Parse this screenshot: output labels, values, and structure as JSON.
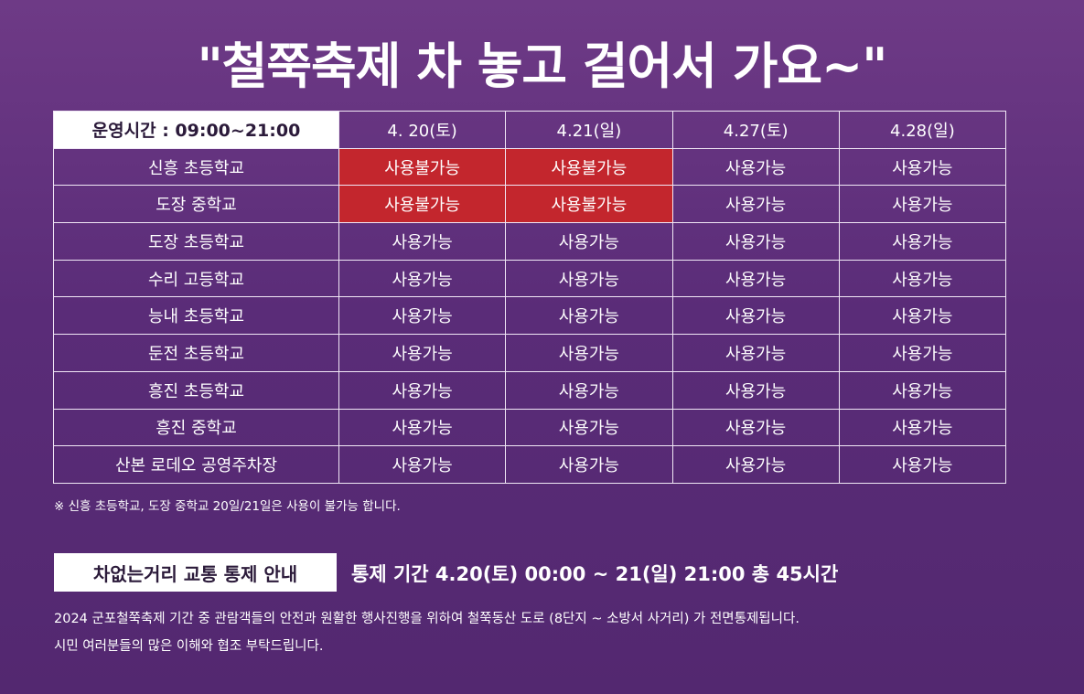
{
  "title": "\"철쭉축제 차 놓고 걸어서 가요~\"",
  "schedule": {
    "hours_label": "운영시간 : 09:00~21:00",
    "dates": [
      "4. 20(토)",
      "4.21(일)",
      "4.27(토)",
      "4.28(일)"
    ],
    "rows": [
      {
        "name": "신흥 초등학교",
        "status": [
          "사용불가능",
          "사용불가능",
          "사용가능",
          "사용가능"
        ]
      },
      {
        "name": "도장 중학교",
        "status": [
          "사용불가능",
          "사용불가능",
          "사용가능",
          "사용가능"
        ]
      },
      {
        "name": "도장 초등학교",
        "status": [
          "사용가능",
          "사용가능",
          "사용가능",
          "사용가능"
        ]
      },
      {
        "name": "수리 고등학교",
        "status": [
          "사용가능",
          "사용가능",
          "사용가능",
          "사용가능"
        ]
      },
      {
        "name": "능내 초등학교",
        "status": [
          "사용가능",
          "사용가능",
          "사용가능",
          "사용가능"
        ]
      },
      {
        "name": "둔전 초등학교",
        "status": [
          "사용가능",
          "사용가능",
          "사용가능",
          "사용가능"
        ]
      },
      {
        "name": "흥진 초등학교",
        "status": [
          "사용가능",
          "사용가능",
          "사용가능",
          "사용가능"
        ]
      },
      {
        "name": "흥진 중학교",
        "status": [
          "사용가능",
          "사용가능",
          "사용가능",
          "사용가능"
        ]
      },
      {
        "name": "산본 로데오 공영주차장",
        "status": [
          "사용가능",
          "사용가능",
          "사용가능",
          "사용가능"
        ]
      }
    ],
    "unavailable_color": "#c3262d"
  },
  "note": "※ 신흥 초등학교, 도장 중학교 20일/21일은 사용이 불가능 합니다.",
  "traffic": {
    "badge": "차없는거리 교통 통제 안내",
    "period": "통제 기간 4.20(토) 00:00 ~ 21(일) 21:00 총 45시간",
    "description_line1": "2024 군포철쭉축제 기간 중 관람객들의 안전과 원활한 행사진행을 위하여 철쭉동산 도로 (8단지 ~ 소방서 사거리) 가 전면통제됩니다.",
    "description_line2": "시민 여러분들의 많은 이해와 협조 부탁드립니다."
  }
}
